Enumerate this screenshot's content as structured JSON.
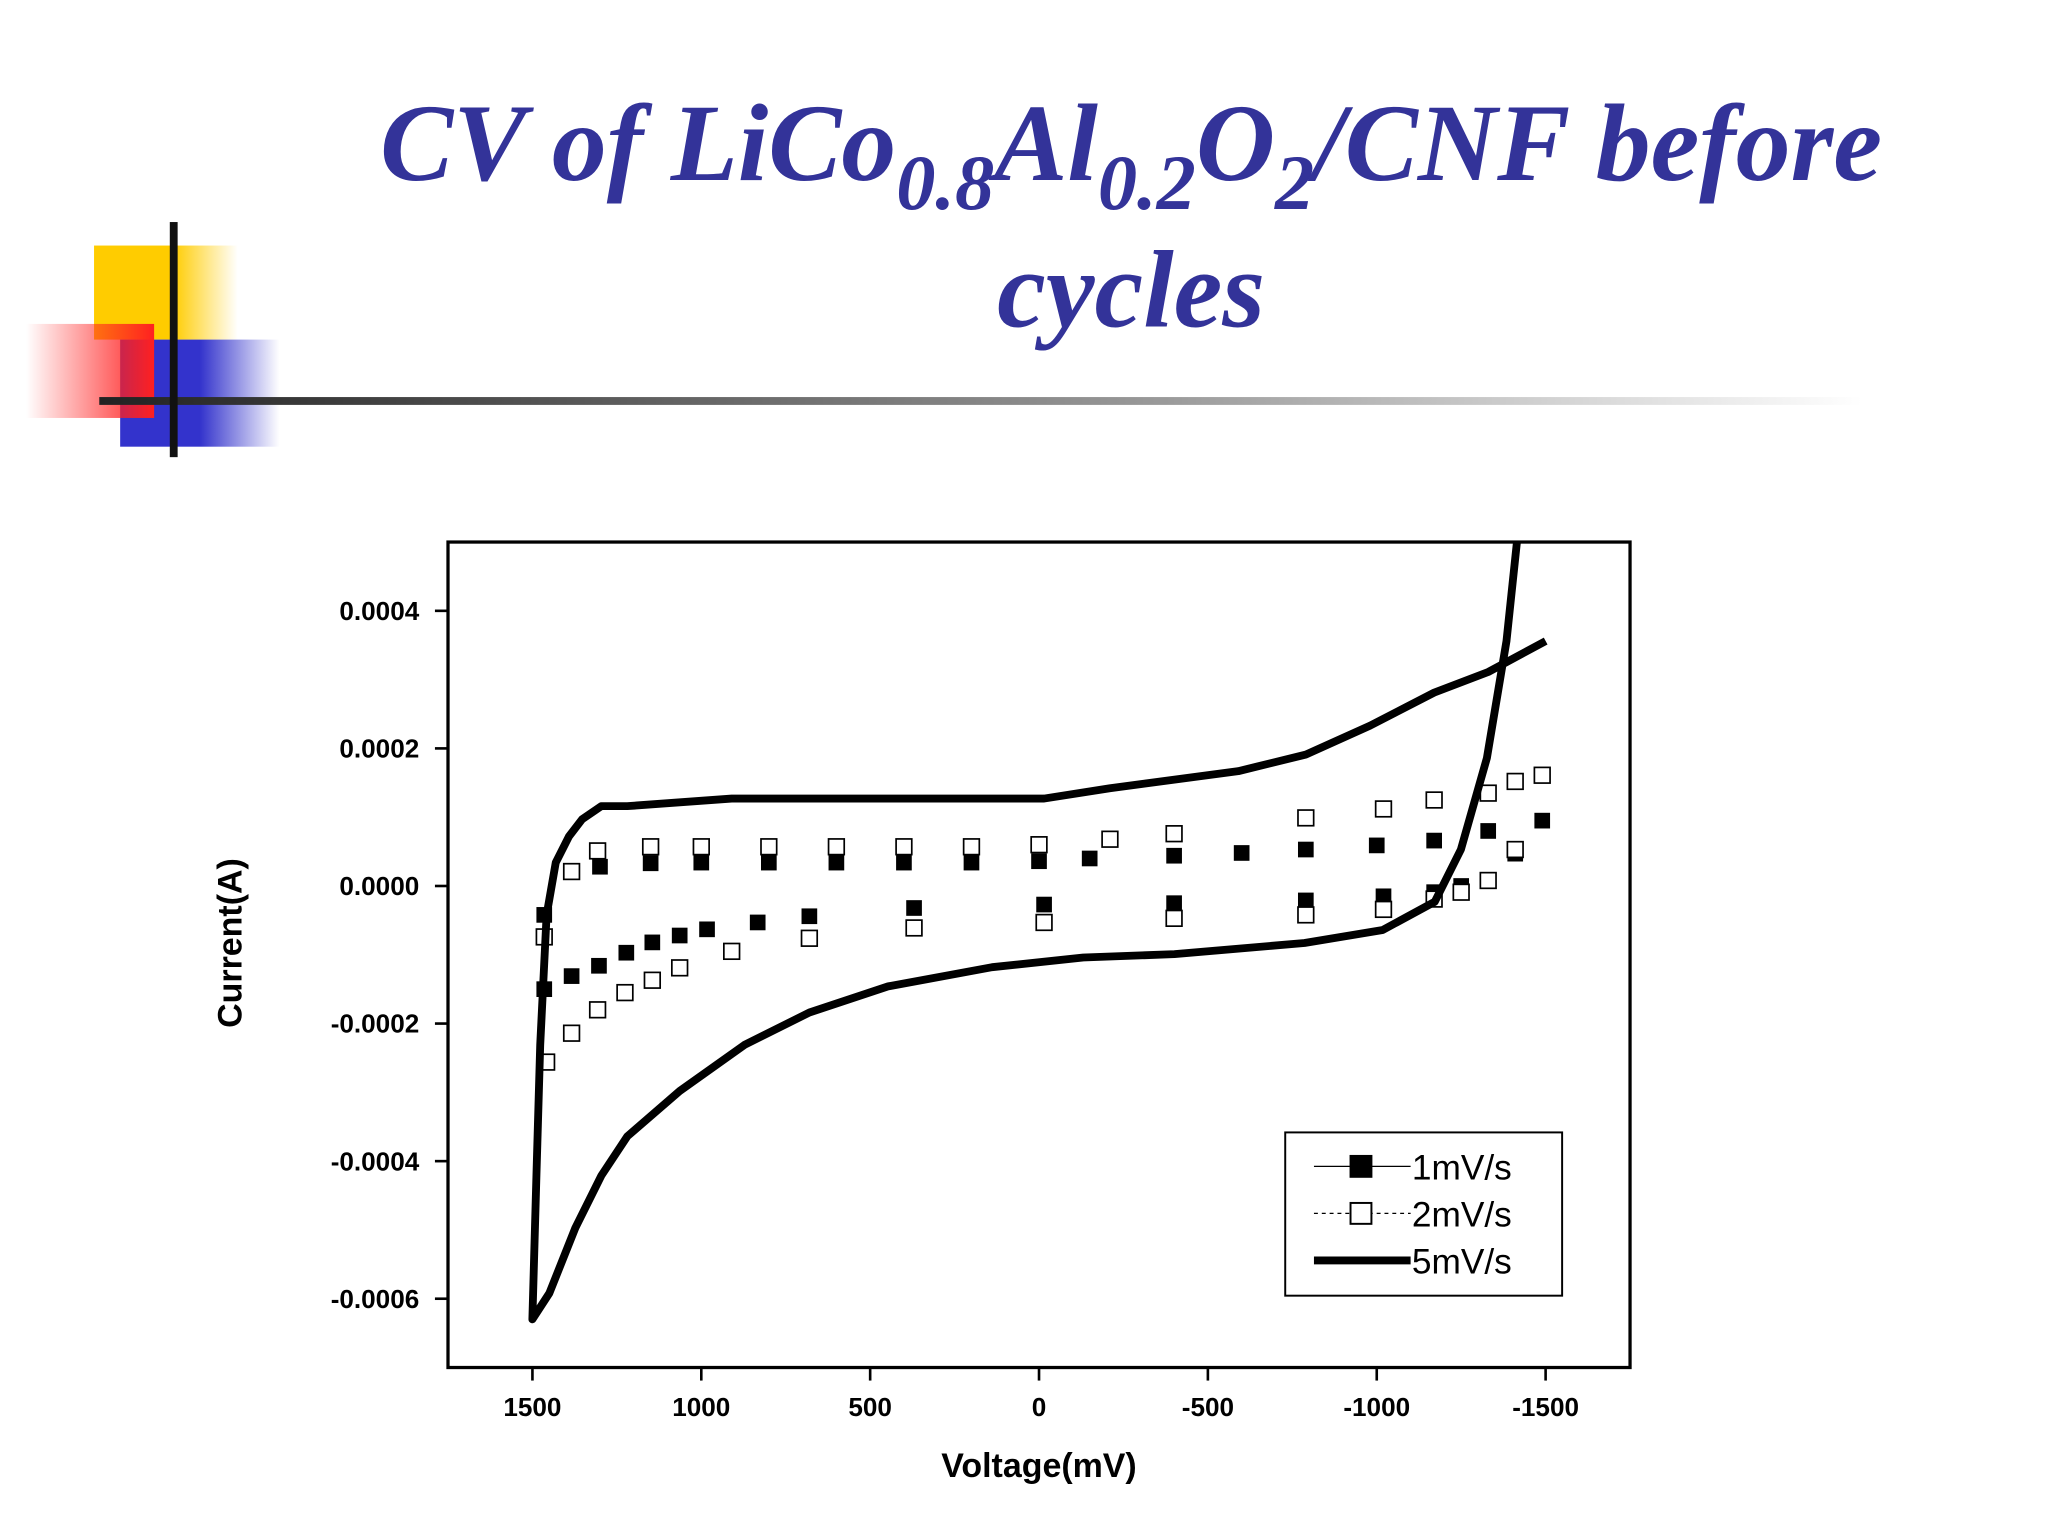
{
  "chart_data": {
    "type": "line",
    "title_lines": [
      [
        {
          "text": "CV of LiCo"
        },
        {
          "text": "0.8",
          "sub": true
        },
        {
          "text": "Al"
        },
        {
          "text": "0.2",
          "sub": true
        },
        {
          "text": "O"
        },
        {
          "text": "2",
          "sub": true
        },
        {
          "text": "/CNF before"
        }
      ],
      [
        {
          "text": "cycles"
        }
      ]
    ],
    "x_label": "Voltage(mV)",
    "y_label": "Current(A)",
    "xlim": [
      1750,
      -1750
    ],
    "xticks": [
      1500,
      1000,
      500,
      0,
      -500,
      -1000,
      -1500
    ],
    "ylim": [
      -0.0007,
      0.0005
    ],
    "yticks": [
      0.0004,
      0.0002,
      {
        "value": 0,
        "label": "0.0000"
      },
      -0.0002,
      -0.0004,
      -0.0006
    ],
    "legend": "lower right",
    "series": [
      {
        "name": "1mV/s",
        "color": "#000000",
        "style": "filled-square",
        "x": [
          1465,
          1300,
          1150,
          1000,
          800,
          600,
          400,
          200,
          0,
          -150,
          -400,
          -600,
          -790,
          -1000,
          -1170,
          -1330,
          -1490,
          -1410,
          -1250,
          -1170,
          -1020,
          -790,
          -400,
          -15,
          370,
          680,
          833,
          983,
          1064,
          1145,
          1222,
          1303,
          1384,
          1465
        ],
        "values": [
          -4.2e-05,
          2.8e-05,
          3.3e-05,
          3.4e-05,
          3.4e-05,
          3.4e-05,
          3.4e-05,
          3.4e-05,
          3.6e-05,
          4e-05,
          4.4e-05,
          4.8e-05,
          5.3e-05,
          5.9e-05,
          6.6e-05,
          8e-05,
          9.5e-05,
          4.7e-05,
          0.0,
          -9e-06,
          -1.5e-05,
          -2.1e-05,
          -2.5e-05,
          -2.7e-05,
          -3.2e-05,
          -4.4e-05,
          -5.3e-05,
          -6.3e-05,
          -7.2e-05,
          -8.2e-05,
          -9.7e-05,
          -0.000116,
          -0.000131,
          -0.00015
        ]
      },
      {
        "name": "2mV/s",
        "color": "#000000",
        "style": "open-square",
        "x": [
          1465,
          1384,
          1307,
          1150,
          1000,
          800,
          600,
          400,
          200,
          0,
          -210,
          -400,
          -790,
          -1020,
          -1170,
          -1330,
          -1410,
          -1490,
          -1410,
          -1330,
          -1250,
          -1170,
          -1020,
          -790,
          -400,
          -15,
          370,
          680,
          910,
          1064,
          1145,
          1226,
          1307,
          1384,
          1458
        ],
        "values": [
          -7.4e-05,
          2.1e-05,
          5.1e-05,
          5.7e-05,
          5.7e-05,
          5.7e-05,
          5.7e-05,
          5.7e-05,
          5.7e-05,
          6e-05,
          6.8e-05,
          7.6e-05,
          9.9e-05,
          0.000112,
          0.000125,
          0.000135,
          0.000152,
          0.000161,
          5.3e-05,
          8e-06,
          -9e-06,
          -1.9e-05,
          -3.4e-05,
          -4.2e-05,
          -4.7e-05,
          -5.3e-05,
          -6.1e-05,
          -7.6e-05,
          -9.5e-05,
          -0.000119,
          -0.000137,
          -0.000155,
          -0.00018,
          -0.000214,
          -0.000256
        ]
      },
      {
        "name": "5mV/s",
        "color": "#000000",
        "style": "thick-line",
        "x": [
          -1415,
          -1384,
          -1326,
          -1249,
          -1172,
          -1018,
          -786,
          -401,
          -131,
          139,
          447,
          680,
          872,
          1064,
          1219,
          1296,
          1373,
          1450,
          1500,
          1488,
          1477,
          1458,
          1431,
          1392,
          1353,
          1296,
          1219,
          910,
          -15,
          -210,
          -590,
          -790,
          -980,
          -1170,
          -1330,
          -1500
        ],
        "values": [
          0.0005,
          0.000356,
          0.000186,
          5.3e-05,
          -2.3e-05,
          -6.4e-05,
          -8.3e-05,
          -9.9e-05,
          -0.000104,
          -0.000118,
          -0.000146,
          -0.000184,
          -0.000231,
          -0.000298,
          -0.000364,
          -0.000421,
          -0.000497,
          -0.000592,
          -0.00063,
          -0.000421,
          -0.000231,
          -4.2e-05,
          3.4e-05,
          7.2e-05,
          9.7e-05,
          0.000116,
          0.000116,
          0.000127,
          0.000127,
          0.000142,
          0.000167,
          0.000191,
          0.000233,
          0.000281,
          0.000311,
          0.000356
        ]
      }
    ]
  }
}
